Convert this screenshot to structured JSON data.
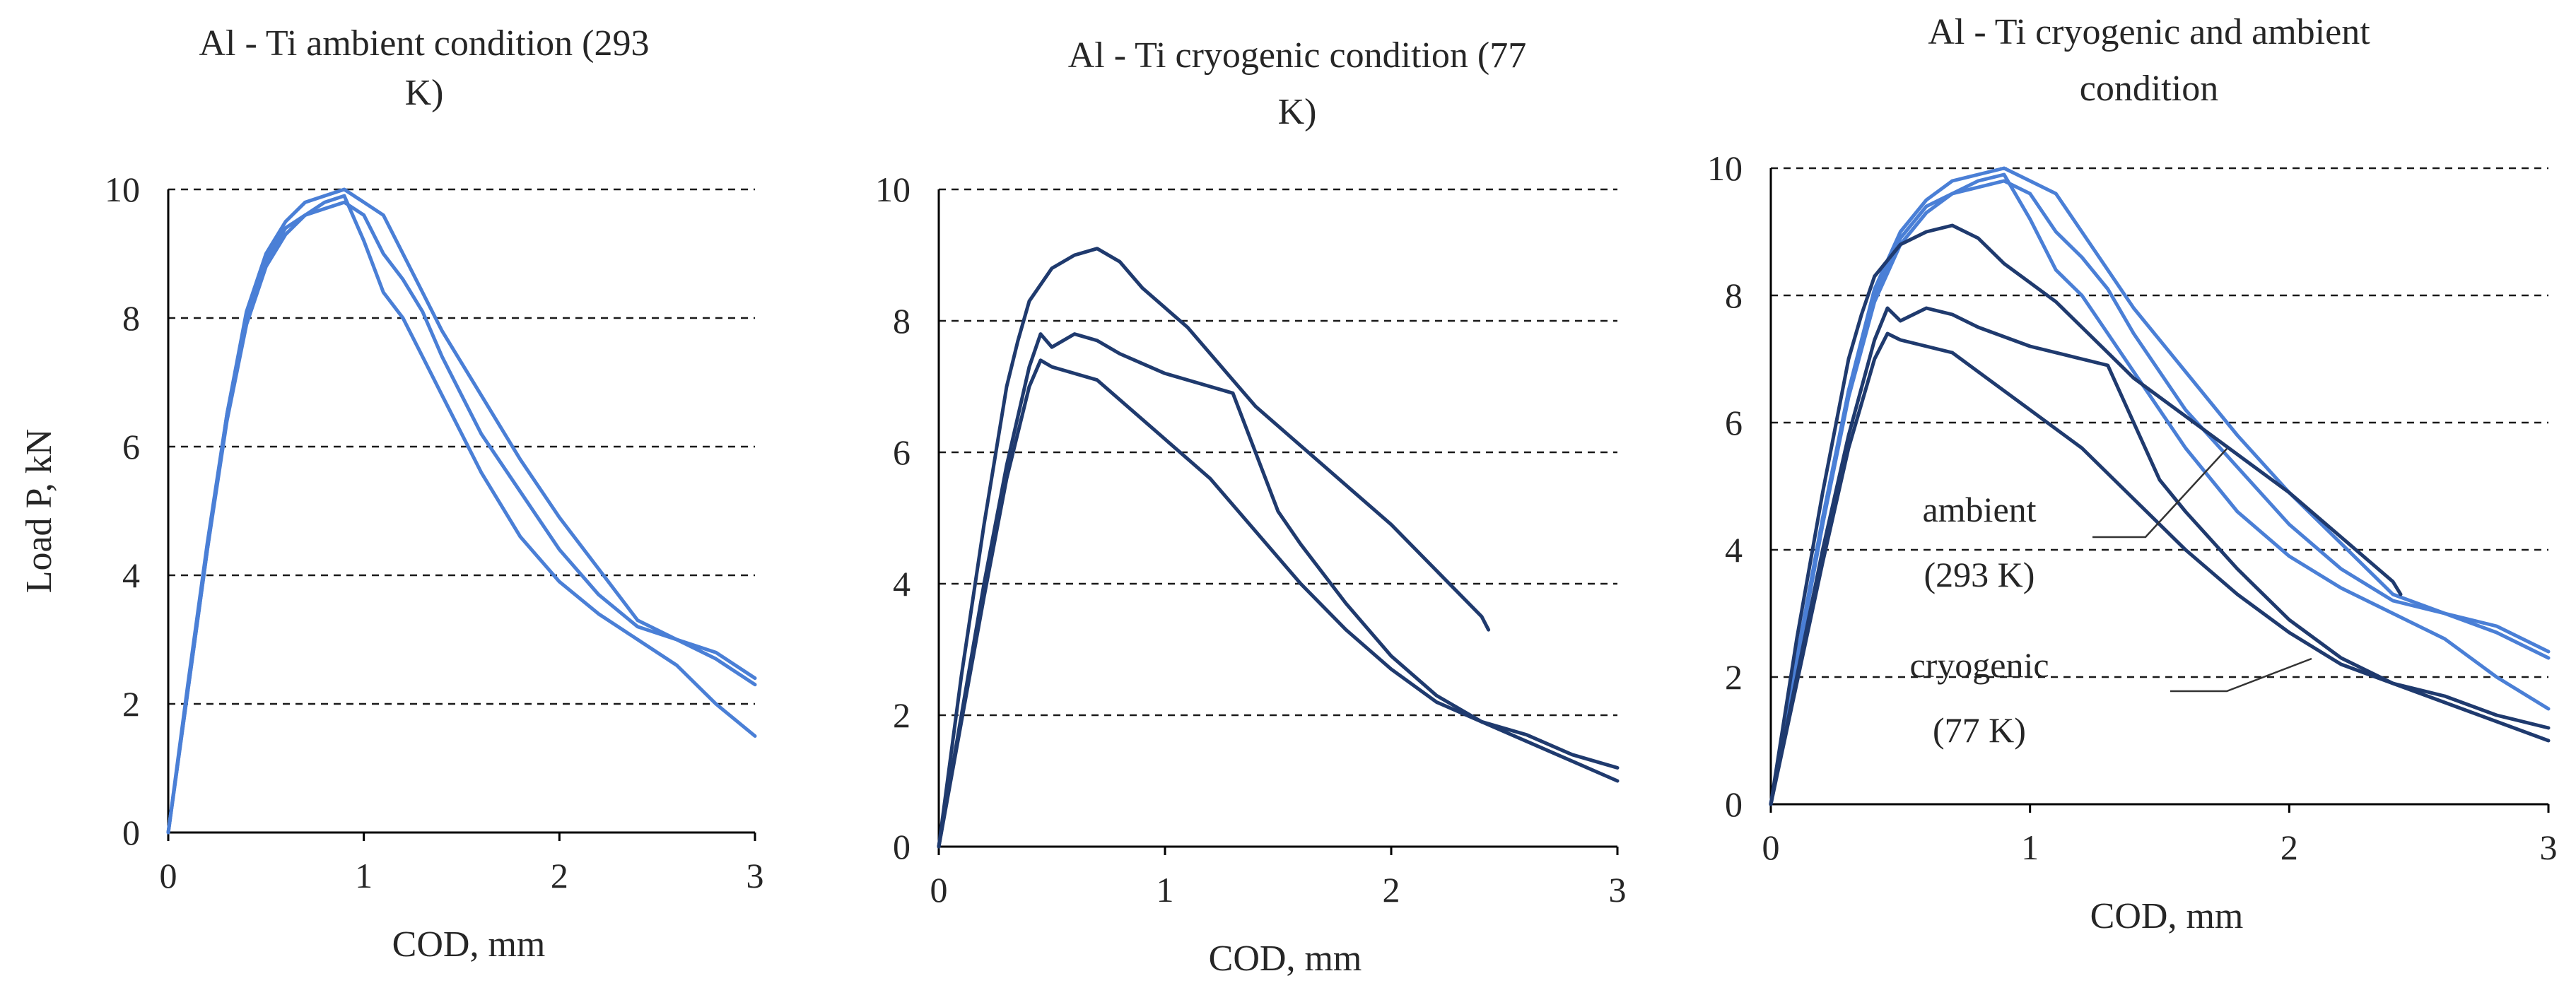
{
  "colors": {
    "ambient": "#4a7fd6",
    "cryogenic": "#1f3a6e"
  },
  "chart_data": [
    {
      "type": "line",
      "title": "Al - Ti ambient condition (293 K)",
      "title_lines": [
        "Al - Ti ambient condition (293",
        "K)"
      ],
      "xlabel": "COD, mm",
      "ylabel": "Load P, kN",
      "xlim": [
        0,
        3
      ],
      "ylim": [
        0,
        10
      ],
      "xticks": [
        "0",
        "1",
        "2",
        "3"
      ],
      "yticks": [
        "0",
        "2",
        "4",
        "6",
        "8",
        "10"
      ],
      "grid": "horizontal dashed",
      "series": [
        {
          "name": "ambient 1",
          "group": "ambient",
          "x": [
            0,
            0.1,
            0.2,
            0.3,
            0.4,
            0.5,
            0.6,
            0.7,
            0.8,
            0.9,
            1.0,
            1.1,
            1.2,
            1.3,
            1.4,
            1.5,
            1.6,
            1.8,
            2.0,
            2.2,
            2.4,
            2.6,
            2.8,
            3.0
          ],
          "y": [
            0,
            2.2,
            4.4,
            6.4,
            7.9,
            8.8,
            9.3,
            9.6,
            9.8,
            9.9,
            9.2,
            8.4,
            8.0,
            7.4,
            6.8,
            6.2,
            5.6,
            4.6,
            3.9,
            3.4,
            3.0,
            2.6,
            2.0,
            1.5
          ]
        },
        {
          "name": "ambient 2",
          "group": "ambient",
          "x": [
            0,
            0.1,
            0.2,
            0.3,
            0.4,
            0.5,
            0.6,
            0.7,
            0.8,
            0.9,
            1.0,
            1.1,
            1.2,
            1.3,
            1.4,
            1.5,
            1.6,
            1.8,
            2.0,
            2.2,
            2.4,
            2.6,
            2.8,
            3.0
          ],
          "y": [
            0,
            2.3,
            4.5,
            6.5,
            8.0,
            8.9,
            9.4,
            9.6,
            9.7,
            9.8,
            9.6,
            9.0,
            8.6,
            8.1,
            7.4,
            6.8,
            6.2,
            5.3,
            4.4,
            3.7,
            3.2,
            3.0,
            2.8,
            2.4
          ]
        },
        {
          "name": "ambient 3",
          "group": "ambient",
          "x": [
            0,
            0.1,
            0.2,
            0.3,
            0.4,
            0.5,
            0.6,
            0.7,
            0.8,
            0.9,
            1.0,
            1.1,
            1.2,
            1.3,
            1.4,
            1.5,
            1.6,
            1.8,
            2.0,
            2.2,
            2.4,
            2.6,
            2.8,
            3.0
          ],
          "y": [
            0,
            2.2,
            4.4,
            6.5,
            8.1,
            9.0,
            9.5,
            9.8,
            9.9,
            10.0,
            9.8,
            9.6,
            9.0,
            8.4,
            7.8,
            7.3,
            6.8,
            5.8,
            4.9,
            4.1,
            3.3,
            3.0,
            2.7,
            2.3
          ]
        }
      ]
    },
    {
      "type": "line",
      "title": "Al - Ti cryogenic condition (77 K)",
      "title_lines": [
        "Al - Ti cryogenic condition (77",
        "K)"
      ],
      "xlabel": "COD, mm",
      "ylabel": "",
      "xlim": [
        0,
        3
      ],
      "ylim": [
        0,
        10
      ],
      "xticks": [
        "0",
        "1",
        "2",
        "3"
      ],
      "yticks": [
        "0",
        "2",
        "4",
        "6",
        "8",
        "10"
      ],
      "grid": "horizontal dashed",
      "series": [
        {
          "name": "cryogenic 1",
          "group": "cryogenic",
          "x": [
            0,
            0.1,
            0.2,
            0.3,
            0.35,
            0.4,
            0.5,
            0.6,
            0.7,
            0.8,
            0.9,
            1.0,
            1.1,
            1.2,
            1.3,
            1.4,
            1.6,
            1.8,
            2.0,
            2.2,
            2.4,
            2.43
          ],
          "y": [
            0,
            2.6,
            4.9,
            7.0,
            7.7,
            8.3,
            8.8,
            9.0,
            9.1,
            8.9,
            8.5,
            8.2,
            7.9,
            7.5,
            7.1,
            6.7,
            6.1,
            5.5,
            4.9,
            4.2,
            3.5,
            3.3
          ]
        },
        {
          "name": "cryogenic 2",
          "group": "cryogenic",
          "x": [
            0,
            0.1,
            0.2,
            0.3,
            0.4,
            0.45,
            0.5,
            0.6,
            0.7,
            0.8,
            1.0,
            1.2,
            1.3,
            1.4,
            1.5,
            1.6,
            1.8,
            2.0,
            2.2,
            2.4,
            2.6,
            2.8,
            3.0
          ],
          "y": [
            0,
            2.0,
            4.0,
            5.8,
            7.3,
            7.8,
            7.6,
            7.8,
            7.7,
            7.5,
            7.2,
            7.0,
            6.9,
            6.0,
            5.1,
            4.6,
            3.7,
            2.9,
            2.3,
            1.9,
            1.7,
            1.4,
            1.2
          ]
        },
        {
          "name": "cryogenic 3",
          "group": "cryogenic",
          "x": [
            0,
            0.1,
            0.2,
            0.3,
            0.4,
            0.45,
            0.5,
            0.6,
            0.7,
            0.8,
            1.0,
            1.2,
            1.4,
            1.6,
            1.8,
            2.0,
            2.2,
            2.4,
            2.6,
            2.8,
            3.0
          ],
          "y": [
            0,
            1.9,
            3.8,
            5.6,
            7.0,
            7.4,
            7.3,
            7.2,
            7.1,
            6.8,
            6.2,
            5.6,
            4.8,
            4.0,
            3.3,
            2.7,
            2.2,
            1.9,
            1.6,
            1.3,
            1.0
          ]
        }
      ]
    },
    {
      "type": "line",
      "title": "Al - Ti cryogenic and ambient condition",
      "title_lines": [
        "Al - Ti cryogenic and ambient",
        "condition"
      ],
      "xlabel": "COD, mm",
      "ylabel": "",
      "xlim": [
        0,
        3
      ],
      "ylim": [
        0,
        10
      ],
      "xticks": [
        "0",
        "1",
        "2",
        "3"
      ],
      "yticks": [
        "0",
        "2",
        "4",
        "6",
        "8",
        "10"
      ],
      "grid": "horizontal dashed",
      "annotations": [
        {
          "text_lines": [
            "ambient",
            "(293 K)"
          ],
          "target": "ambient"
        },
        {
          "text_lines": [
            "cryogenic",
            "(77 K)"
          ],
          "target": "cryogenic"
        }
      ],
      "series": [
        {
          "name": "ambient 1",
          "group": "ambient",
          "x": [
            0,
            0.1,
            0.2,
            0.3,
            0.4,
            0.5,
            0.6,
            0.7,
            0.8,
            0.9,
            1.0,
            1.1,
            1.2,
            1.3,
            1.4,
            1.5,
            1.6,
            1.8,
            2.0,
            2.2,
            2.4,
            2.6,
            2.8,
            3.0
          ],
          "y": [
            0,
            2.2,
            4.4,
            6.4,
            7.9,
            8.8,
            9.3,
            9.6,
            9.8,
            9.9,
            9.2,
            8.4,
            8.0,
            7.4,
            6.8,
            6.2,
            5.6,
            4.6,
            3.9,
            3.4,
            3.0,
            2.6,
            2.0,
            1.5
          ]
        },
        {
          "name": "ambient 2",
          "group": "ambient",
          "x": [
            0,
            0.1,
            0.2,
            0.3,
            0.4,
            0.5,
            0.6,
            0.7,
            0.8,
            0.9,
            1.0,
            1.1,
            1.2,
            1.3,
            1.4,
            1.5,
            1.6,
            1.8,
            2.0,
            2.2,
            2.4,
            2.6,
            2.8,
            3.0
          ],
          "y": [
            0,
            2.3,
            4.5,
            6.5,
            8.0,
            8.9,
            9.4,
            9.6,
            9.7,
            9.8,
            9.6,
            9.0,
            8.6,
            8.1,
            7.4,
            6.8,
            6.2,
            5.3,
            4.4,
            3.7,
            3.2,
            3.0,
            2.8,
            2.4
          ]
        },
        {
          "name": "ambient 3",
          "group": "ambient",
          "x": [
            0,
            0.1,
            0.2,
            0.3,
            0.4,
            0.5,
            0.6,
            0.7,
            0.8,
            0.9,
            1.0,
            1.1,
            1.2,
            1.3,
            1.4,
            1.5,
            1.6,
            1.8,
            2.0,
            2.2,
            2.4,
            2.6,
            2.8,
            3.0
          ],
          "y": [
            0,
            2.2,
            4.4,
            6.5,
            8.1,
            9.0,
            9.5,
            9.8,
            9.9,
            10.0,
            9.8,
            9.6,
            9.0,
            8.4,
            7.8,
            7.3,
            6.8,
            5.8,
            4.9,
            4.1,
            3.3,
            3.0,
            2.7,
            2.3
          ]
        },
        {
          "name": "cryogenic 1",
          "group": "cryogenic",
          "x": [
            0,
            0.1,
            0.2,
            0.3,
            0.35,
            0.4,
            0.5,
            0.6,
            0.7,
            0.8,
            0.9,
            1.0,
            1.1,
            1.2,
            1.3,
            1.4,
            1.6,
            1.8,
            2.0,
            2.2,
            2.4,
            2.43
          ],
          "y": [
            0,
            2.6,
            4.9,
            7.0,
            7.7,
            8.3,
            8.8,
            9.0,
            9.1,
            8.9,
            8.5,
            8.2,
            7.9,
            7.5,
            7.1,
            6.7,
            6.1,
            5.5,
            4.9,
            4.2,
            3.5,
            3.3
          ]
        },
        {
          "name": "cryogenic 2",
          "group": "cryogenic",
          "x": [
            0,
            0.1,
            0.2,
            0.3,
            0.4,
            0.45,
            0.5,
            0.6,
            0.7,
            0.8,
            1.0,
            1.2,
            1.3,
            1.4,
            1.5,
            1.6,
            1.8,
            2.0,
            2.2,
            2.4,
            2.6,
            2.8,
            3.0
          ],
          "y": [
            0,
            2.0,
            4.0,
            5.8,
            7.3,
            7.8,
            7.6,
            7.8,
            7.7,
            7.5,
            7.2,
            7.0,
            6.9,
            6.0,
            5.1,
            4.6,
            3.7,
            2.9,
            2.3,
            1.9,
            1.7,
            1.4,
            1.2
          ]
        },
        {
          "name": "cryogenic 3",
          "group": "cryogenic",
          "x": [
            0,
            0.1,
            0.2,
            0.3,
            0.4,
            0.45,
            0.5,
            0.6,
            0.7,
            0.8,
            1.0,
            1.2,
            1.4,
            1.6,
            1.8,
            2.0,
            2.2,
            2.4,
            2.6,
            2.8,
            3.0
          ],
          "y": [
            0,
            1.9,
            3.8,
            5.6,
            7.0,
            7.4,
            7.3,
            7.2,
            7.1,
            6.8,
            6.2,
            5.6,
            4.8,
            4.0,
            3.3,
            2.7,
            2.2,
            1.9,
            1.6,
            1.3,
            1.0
          ]
        }
      ]
    }
  ]
}
